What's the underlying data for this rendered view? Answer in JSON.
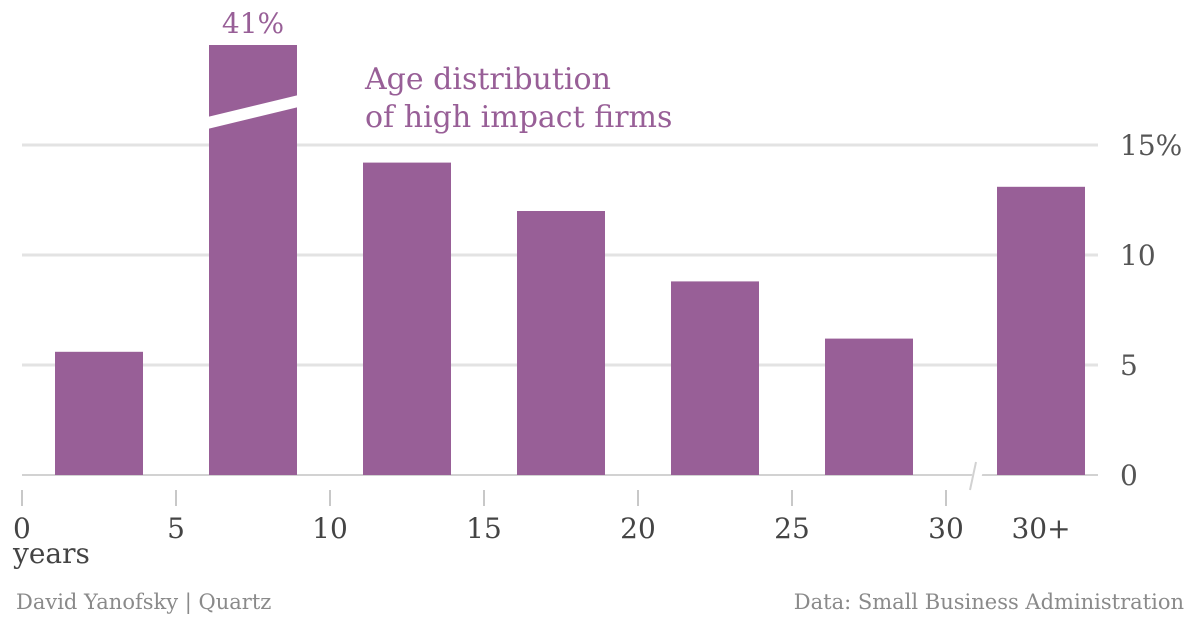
{
  "chart_data": {
    "type": "bar",
    "title_lines": [
      "Age distribution",
      "of high impact firms"
    ],
    "categories": [
      "0–5",
      "5–10",
      "10–15",
      "15–20",
      "20–25",
      "25–30",
      "30+"
    ],
    "values": [
      5.6,
      41,
      14.2,
      12.0,
      8.8,
      6.2,
      13.1
    ],
    "value_labels": [
      "",
      "41%",
      "",
      "",
      "",
      "",
      ""
    ],
    "axis_break_value_index": 1,
    "ylim": [
      0,
      15
    ],
    "y_axis_position": "right",
    "y_ticks": [
      0,
      5,
      10,
      15
    ],
    "y_tick_labels": [
      "0",
      "5",
      "10",
      "15%"
    ],
    "x_ticks": [
      0,
      5,
      10,
      15,
      20,
      25,
      30
    ],
    "x_tick_labels": [
      "0",
      "5",
      "10",
      "15",
      "20",
      "25",
      "30"
    ],
    "x_extra_label": "30+",
    "xlabel": "years",
    "grid": true,
    "bar_color": "#985f97"
  },
  "footer": {
    "credit": "David Yanofsky | Quartz",
    "source": "Data: Small Business Administration"
  }
}
